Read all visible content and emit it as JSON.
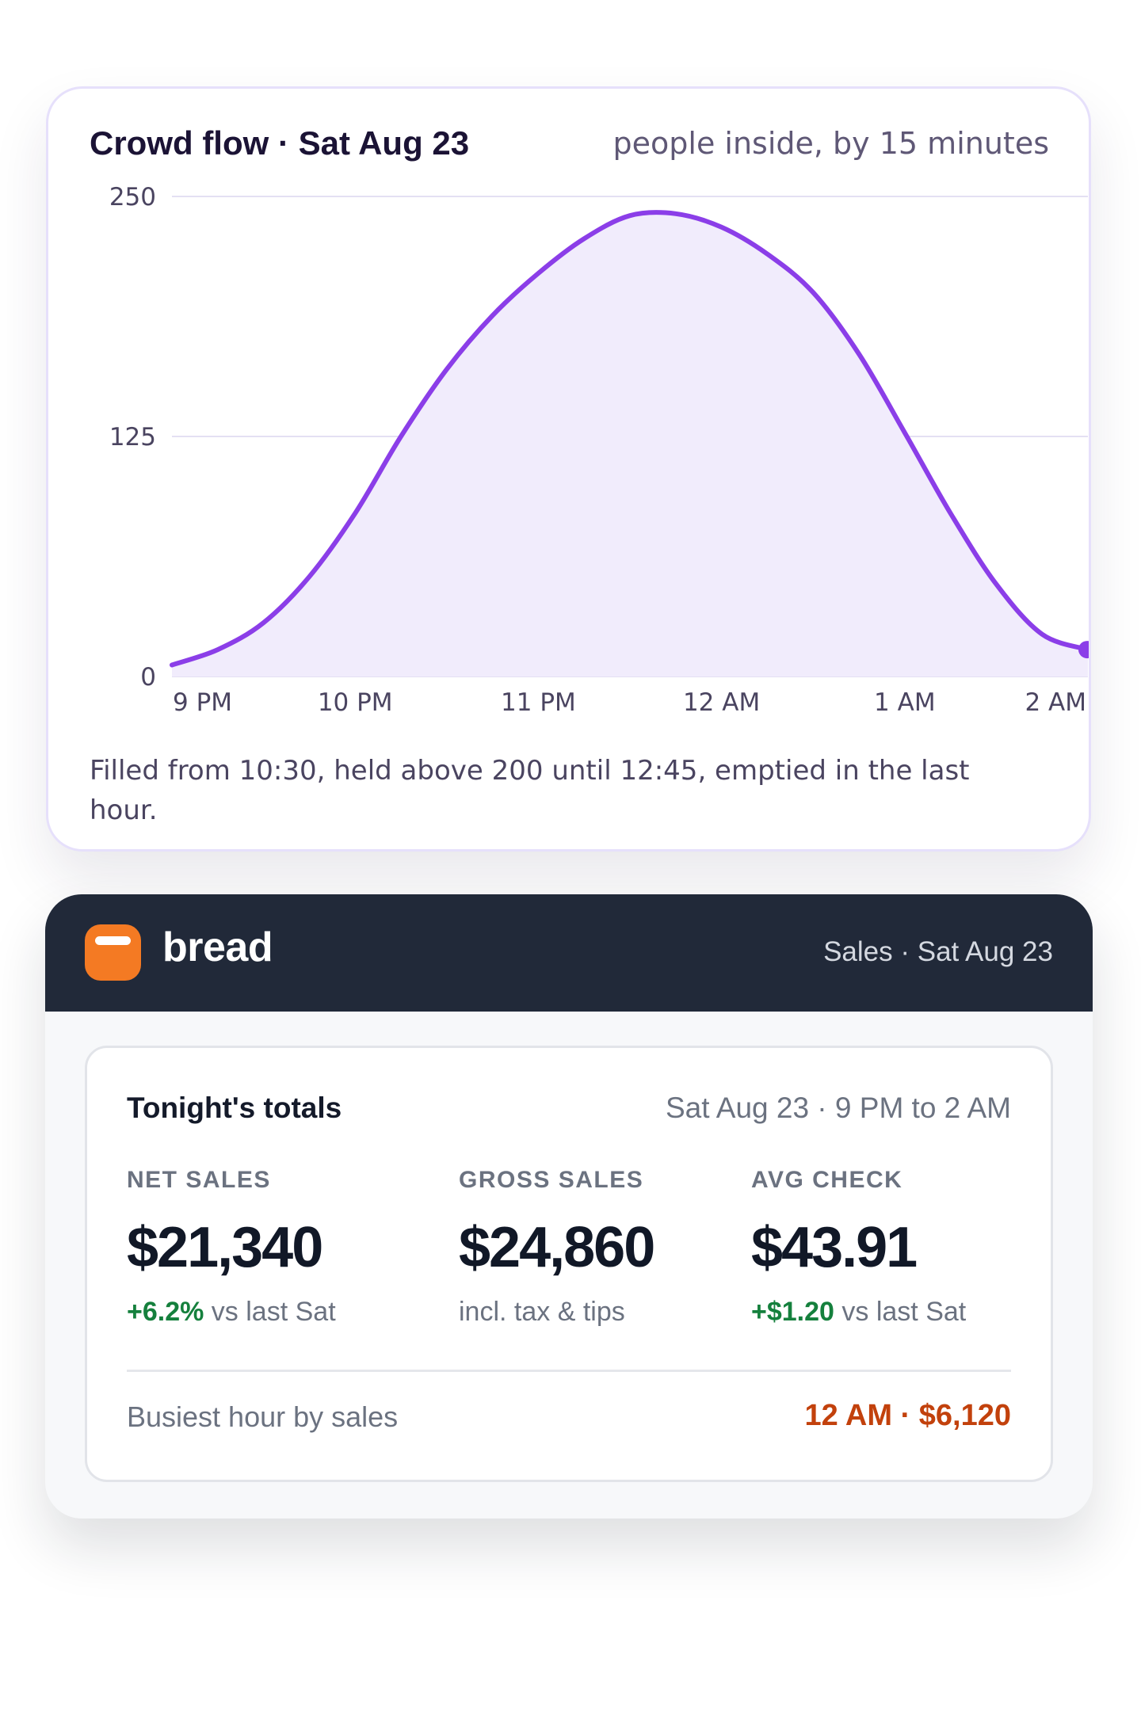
{
  "crowd_flow": {
    "title": "Crowd flow · Sat Aug 23",
    "subtitle": "people inside, by 15 minutes",
    "note": "Filled from 10:30, held above 200 until 12:45, emptied in the last hour.",
    "chart_data": {
      "type": "area",
      "title": "Crowd flow · Sat Aug 23",
      "subtitle": "people inside, by 15 minutes",
      "xlabel": "",
      "ylabel": "",
      "x_ticks": [
        "9 PM",
        "10 PM",
        "11 PM",
        "12 AM",
        "1 AM",
        "2 AM"
      ],
      "y_ticks": [
        0,
        125,
        250
      ],
      "ylim": [
        0,
        250
      ],
      "xlim_hours": [
        21,
        26
      ],
      "grid": true,
      "legend": "none",
      "color": "#8b3ee8",
      "fill_color": "#f1ecfc",
      "series": [
        {
          "x": [
            "9:00 PM",
            "9:15 PM",
            "9:30 PM",
            "9:45 PM",
            "10:00 PM",
            "10:15 PM",
            "10:30 PM",
            "10:45 PM",
            "11:00 PM",
            "11:15 PM",
            "11:30 PM",
            "11:45 PM",
            "12:00 AM",
            "12:15 AM",
            "12:30 AM",
            "12:45 AM",
            "1:00 AM",
            "1:15 AM",
            "1:30 AM",
            "1:45 AM",
            "2:00 AM"
          ],
          "values": [
            6,
            14,
            28,
            52,
            85,
            125,
            160,
            188,
            210,
            228,
            240,
            241,
            234,
            220,
            200,
            168,
            127,
            85,
            48,
            22,
            14
          ]
        }
      ]
    }
  },
  "bread": {
    "brand": "bread",
    "header_sub": "Sales · Sat Aug 23",
    "totals_title": "Tonight's totals",
    "totals_range": "Sat Aug 23 · 9 PM to 2 AM",
    "metrics": [
      {
        "label": "NET SALES",
        "value": "$21,340",
        "delta": "+6.2%",
        "note": " vs last Sat"
      },
      {
        "label": "GROSS SALES",
        "value": "$24,860",
        "delta": "",
        "note": "incl. tax & tips"
      },
      {
        "label": "AVG CHECK",
        "value": "$43.91",
        "delta": "+$1.20",
        "note": " vs last Sat"
      }
    ],
    "busiest_label": "Busiest hour by sales",
    "busiest_value": "12 AM · $6,120",
    "colors": {
      "header_bg": "#212939",
      "logo": "#f47a23",
      "positive": "#15803d",
      "highlight": "#c2410c"
    },
    "logo_icon": "bread-logo-icon"
  }
}
